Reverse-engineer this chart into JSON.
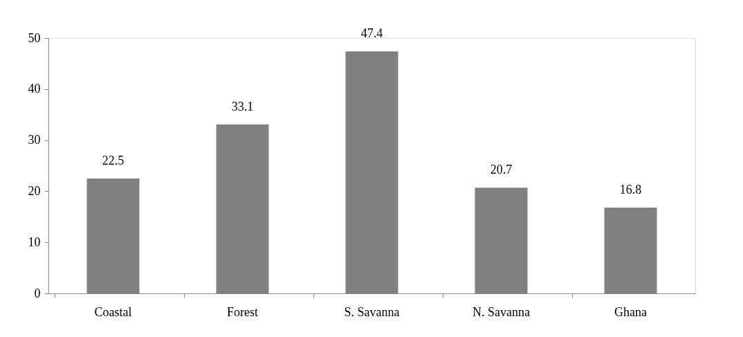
{
  "chart_data": {
    "type": "bar",
    "categories": [
      "Coastal",
      "Forest",
      "S. Savanna",
      "N. Savanna",
      "Ghana"
    ],
    "values": [
      22.5,
      33.1,
      47.4,
      20.7,
      16.8
    ],
    "color": "#808080",
    "ylim": [
      0,
      50
    ],
    "yticks": [
      0,
      10,
      20,
      30,
      40,
      50
    ],
    "grid": false,
    "data_labels": true
  }
}
